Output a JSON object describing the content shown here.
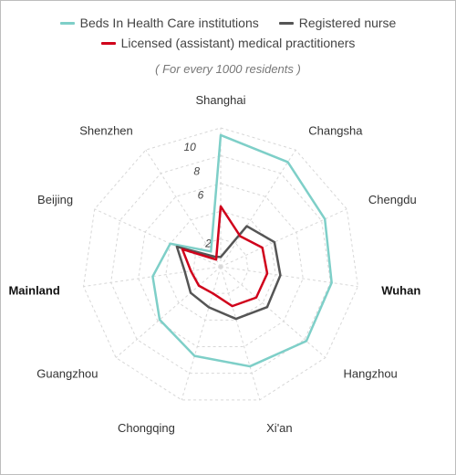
{
  "subtitle": "( For every 1000 residents )",
  "chart_data": {
    "type": "radar",
    "categories": [
      "Shanghai",
      "Changsha",
      "Chengdu",
      "Wuhan",
      "Hangzhou",
      "Xi'an",
      "Chongqing",
      "Guangzhou",
      "Mainland",
      "Beijing",
      "Shenzhen"
    ],
    "bold_categories": [
      "Wuhan",
      "Mainland"
    ],
    "radial_ticks": [
      "2",
      "6",
      "8",
      "10"
    ],
    "rmax": 11.5,
    "grid": true,
    "legend_position": "top",
    "series": [
      {
        "name": "Beds In Health Care institutions",
        "color": "#7ecfc8",
        "values": [
          10.9,
          10.3,
          9.5,
          9.3,
          9.4,
          8.6,
          7.7,
          6.7,
          5.7,
          4.6,
          1.5
        ]
      },
      {
        "name": "Registered nurse",
        "color": "#555555",
        "values": [
          0.8,
          4.0,
          4.9,
          5.0,
          5.1,
          4.5,
          3.5,
          3.3,
          3.0,
          4.0,
          1.0
        ]
      },
      {
        "name": "Licensed (assistant) medical practitioners",
        "color": "#d0021b",
        "values": [
          5.0,
          3.0,
          3.8,
          3.9,
          3.9,
          3.4,
          2.3,
          2.4,
          2.5,
          3.5,
          0.7
        ]
      }
    ]
  }
}
